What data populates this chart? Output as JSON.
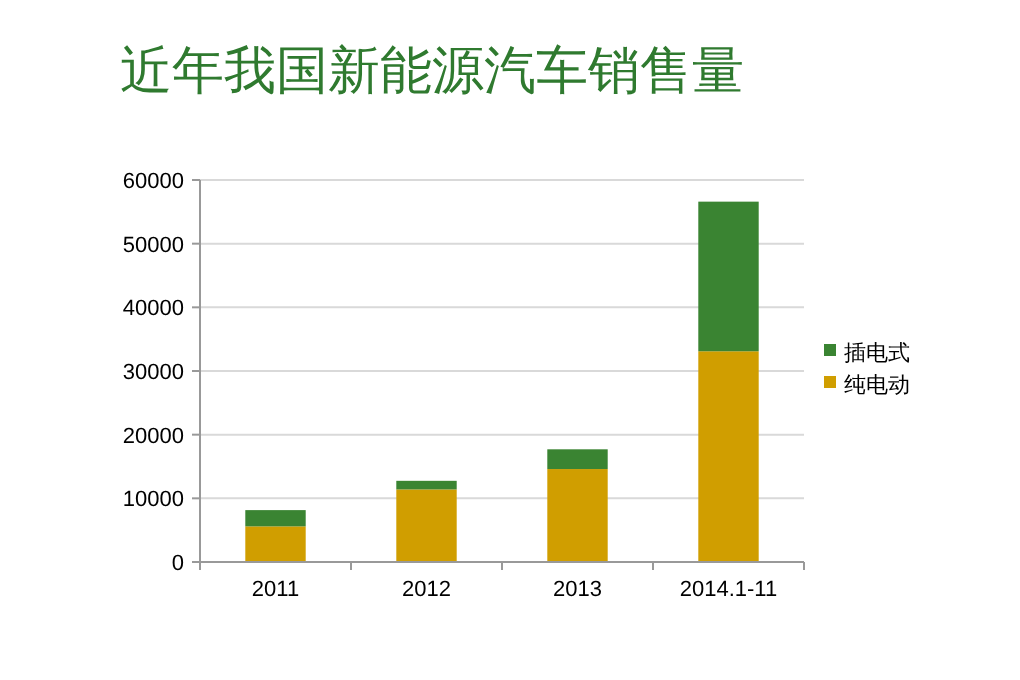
{
  "chart_data": {
    "type": "bar",
    "title": "近年我国新能源汽车销售量",
    "stacked": true,
    "categories": [
      "2011",
      "2012",
      "2013",
      "2014.1-11"
    ],
    "series": [
      {
        "name": "纯电动",
        "color": "#d09e00",
        "values": [
          5600,
          11400,
          14600,
          33100
        ]
      },
      {
        "name": "插电式",
        "color": "#3a8432",
        "values": [
          2550,
          1350,
          3100,
          23500
        ]
      }
    ],
    "ylim": [
      0,
      60000
    ],
    "yticks": [
      0,
      10000,
      20000,
      30000,
      40000,
      50000,
      60000
    ],
    "grid": "y",
    "legend": "right"
  }
}
